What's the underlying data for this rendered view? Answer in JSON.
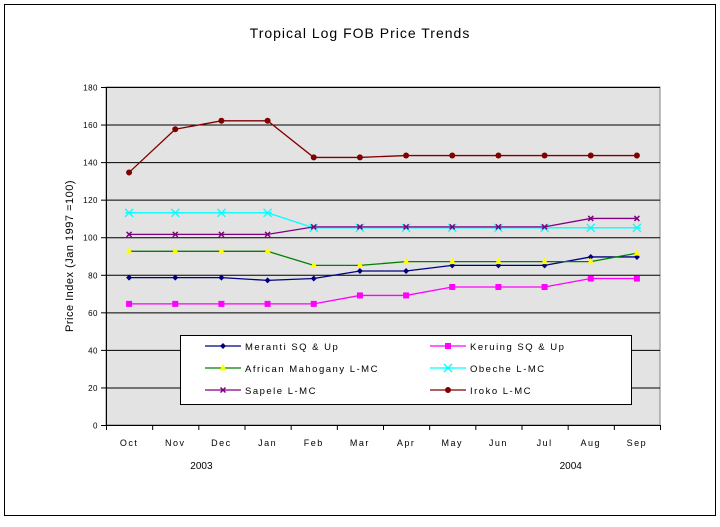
{
  "chart_data": {
    "type": "line",
    "title": "Tropical Log FOB Price Trends",
    "xlabel": "",
    "ylabel": "Price Index (Jan 1997 =100)",
    "categories": [
      "Oct",
      "Nov",
      "Dec",
      "Jan",
      "Feb",
      "Mar",
      "Apr",
      "May",
      "Jun",
      "Jul",
      "Aug",
      "Sep"
    ],
    "year_labels": [
      {
        "label": "2003",
        "at": "Dec"
      },
      {
        "label": "2004",
        "at": "Aug"
      }
    ],
    "ylim": [
      0,
      180
    ],
    "yticks": [
      "0",
      "20",
      "40",
      "60",
      "80",
      "100",
      "120",
      "140",
      "160",
      "180"
    ],
    "grid": true,
    "legend": "bottom-inside",
    "series": [
      {
        "name": "Meranti SQ & Up",
        "color": "#000080",
        "marker": "diamond",
        "marker_color": "#000080",
        "values": [
          78.5,
          78.5,
          78.5,
          77,
          78,
          82,
          82,
          85,
          85,
          85,
          89.5,
          89.5
        ]
      },
      {
        "name": "Keruing SQ & Up",
        "color": "#ff00ff",
        "marker": "square",
        "marker_color": "#ff00ff",
        "values": [
          64.5,
          64.5,
          64.5,
          64.5,
          64.5,
          69,
          69,
          73.5,
          73.5,
          73.5,
          78,
          78
        ]
      },
      {
        "name": "African Mahogany L-MC",
        "color": "#008000",
        "marker": "triangle",
        "marker_color": "#ffff00",
        "values": [
          92.5,
          92.5,
          92.5,
          92.5,
          85,
          85,
          87,
          87,
          87,
          87,
          87,
          91.5
        ]
      },
      {
        "name": "Obeche L-MC",
        "color": "#00ffff",
        "marker": "x",
        "marker_color": "#00ffff",
        "values": [
          113,
          113,
          113,
          113,
          105,
          105,
          105,
          105,
          105,
          105,
          105,
          105
        ]
      },
      {
        "name": "Sapele L-MC",
        "color": "#800080",
        "marker": "star",
        "marker_color": "#800080",
        "values": [
          101.5,
          101.5,
          101.5,
          101.5,
          105.5,
          105.5,
          105.5,
          105.5,
          105.5,
          105.5,
          110,
          110
        ]
      },
      {
        "name": "Iroko L-MC",
        "color": "#800000",
        "marker": "circle",
        "marker_color": "#800000",
        "values": [
          134.5,
          157.5,
          162,
          162,
          142.5,
          142.5,
          143.5,
          143.5,
          143.5,
          143.5,
          143.5,
          143.5
        ]
      }
    ],
    "colors": {
      "plot_background": "#e3e3e3",
      "gridline": "#000000"
    }
  }
}
